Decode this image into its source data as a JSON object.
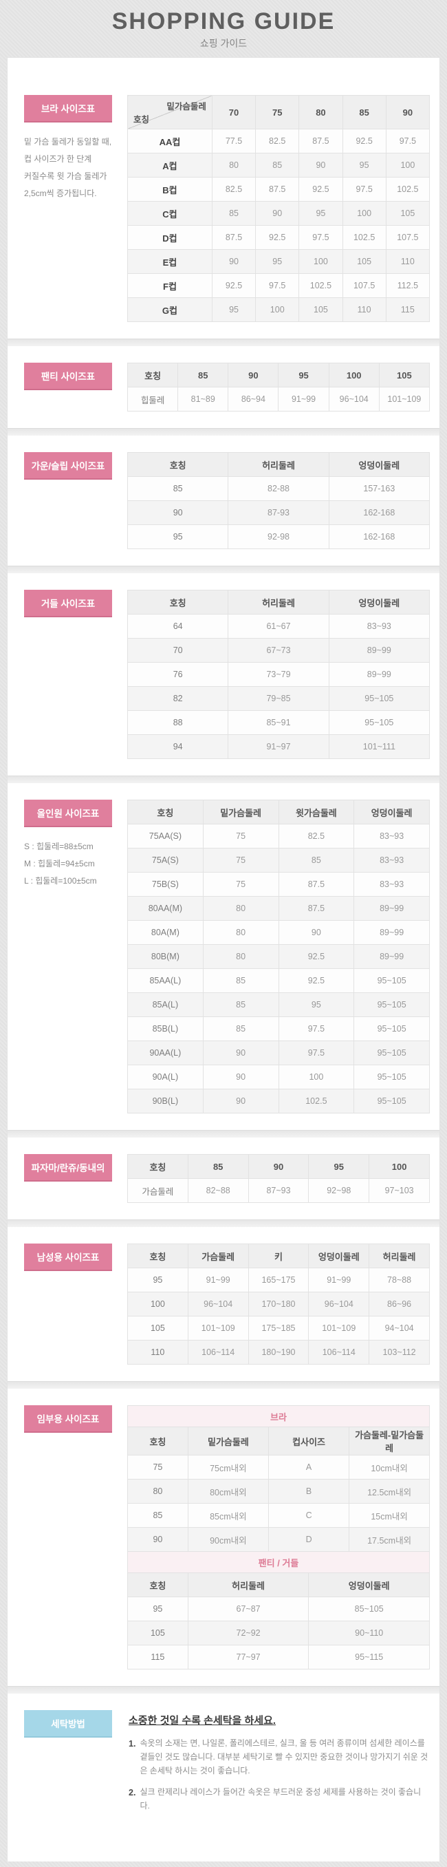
{
  "page": {
    "title": "SHOPPING GUIDE",
    "subtitle": "쇼핑 가이드"
  },
  "colors": {
    "accent_pink": "#e07f9d",
    "accent_pink_border": "#cf6d8c",
    "accent_blue": "#a5d7e8",
    "subheader_bg": "#faf0f3",
    "subheader_text": "#dd7b95",
    "table_header_bg": "#efefef",
    "page_bg": "#e5e5e5"
  },
  "sections": [
    {
      "id": "bra",
      "label": "브라 사이즈표",
      "label_style": "pink",
      "notes": [
        "밑 가슴 둘레가 동일할 때,",
        "컵 사이즈가 한 단계",
        "커질수록 윗 가슴 둘레가",
        "2,5cm씩 증가됩니다."
      ],
      "tables": [
        {
          "diagonal": {
            "top": "밑가슴둘레",
            "bottom": "호칭"
          },
          "headers": [
            "70",
            "75",
            "80",
            "85",
            "90"
          ],
          "col_widths": [
            "28%",
            "14.4%",
            "14.4%",
            "14.4%",
            "14.4%",
            "14.4%"
          ],
          "rowhead_bold": true,
          "rows": [
            [
              "AA컵",
              "77.5",
              "82.5",
              "87.5",
              "92.5",
              "97.5"
            ],
            [
              "A컵",
              "80",
              "85",
              "90",
              "95",
              "100"
            ],
            [
              "B컵",
              "82.5",
              "87.5",
              "92.5",
              "97.5",
              "102.5"
            ],
            [
              "C컵",
              "85",
              "90",
              "95",
              "100",
              "105"
            ],
            [
              "D컵",
              "87.5",
              "92.5",
              "97.5",
              "102.5",
              "107.5"
            ],
            [
              "E컵",
              "90",
              "95",
              "100",
              "105",
              "110"
            ],
            [
              "F컵",
              "92.5",
              "97.5",
              "102.5",
              "107.5",
              "112.5"
            ],
            [
              "G컵",
              "95",
              "100",
              "105",
              "110",
              "115"
            ]
          ]
        }
      ]
    },
    {
      "id": "panty",
      "label": "팬티 사이즈표",
      "label_style": "pink",
      "notes": [],
      "tables": [
        {
          "headers": [
            "호칭",
            "85",
            "90",
            "95",
            "100",
            "105"
          ],
          "rows": [
            [
              "힙둘레",
              "81~89",
              "86~94",
              "91~99",
              "96~104",
              "101~109"
            ]
          ]
        }
      ]
    },
    {
      "id": "gown-slip",
      "label": "가운/슬립 사이즈표",
      "label_style": "pink",
      "notes": [],
      "tables": [
        {
          "headers": [
            "호칭",
            "허리둘레",
            "엉덩이둘레"
          ],
          "rows": [
            [
              "85",
              "82-88",
              "157-163"
            ],
            [
              "90",
              "87-93",
              "162-168"
            ],
            [
              "95",
              "92-98",
              "162-168"
            ]
          ]
        }
      ]
    },
    {
      "id": "girdle",
      "label": "거들 사이즈표",
      "label_style": "pink",
      "notes": [],
      "tables": [
        {
          "headers": [
            "호칭",
            "허리둘레",
            "엉덩이둘레"
          ],
          "rows": [
            [
              "64",
              "61~67",
              "83~93"
            ],
            [
              "70",
              "67~73",
              "89~99"
            ],
            [
              "76",
              "73~79",
              "89~99"
            ],
            [
              "82",
              "79~85",
              "95~105"
            ],
            [
              "88",
              "85~91",
              "95~105"
            ],
            [
              "94",
              "91~97",
              "101~111"
            ]
          ]
        }
      ]
    },
    {
      "id": "all-in-one",
      "label": "올인원 사이즈표",
      "label_style": "pink",
      "notes": [
        "S : 힙둘레=88±5cm",
        "M : 힙둘레=94±5cm",
        "L : 힙둘레=100±5cm"
      ],
      "tables": [
        {
          "headers": [
            "호칭",
            "밑가슴둘레",
            "윗가슴둘레",
            "엉덩이둘레"
          ],
          "rows": [
            [
              "75AA(S)",
              "75",
              "82.5",
              "83~93"
            ],
            [
              "75A(S)",
              "75",
              "85",
              "83~93"
            ],
            [
              "75B(S)",
              "75",
              "87.5",
              "83~93"
            ],
            [
              "80AA(M)",
              "80",
              "87.5",
              "89~99"
            ],
            [
              "80A(M)",
              "80",
              "90",
              "89~99"
            ],
            [
              "80B(M)",
              "80",
              "92.5",
              "89~99"
            ],
            [
              "85AA(L)",
              "85",
              "92.5",
              "95~105"
            ],
            [
              "85A(L)",
              "85",
              "95",
              "95~105"
            ],
            [
              "85B(L)",
              "85",
              "97.5",
              "95~105"
            ],
            [
              "90AA(L)",
              "90",
              "97.5",
              "95~105"
            ],
            [
              "90A(L)",
              "90",
              "100",
              "95~105"
            ],
            [
              "90B(L)",
              "90",
              "102.5",
              "95~105"
            ]
          ]
        }
      ]
    },
    {
      "id": "pajama",
      "label": "파자마/란쥬/동내의",
      "label_style": "pink",
      "notes": [],
      "tables": [
        {
          "headers": [
            "호칭",
            "85",
            "90",
            "95",
            "100"
          ],
          "rows": [
            [
              "가슴둘레",
              "82~88",
              "87~93",
              "92~98",
              "97~103"
            ]
          ]
        }
      ]
    },
    {
      "id": "mens",
      "label": "남성용 사이즈표",
      "label_style": "pink",
      "notes": [],
      "tables": [
        {
          "headers": [
            "호칭",
            "가슴둘레",
            "키",
            "엉덩이둘레",
            "허리둘레"
          ],
          "rows": [
            [
              "95",
              "91~99",
              "165~175",
              "91~99",
              "78~88"
            ],
            [
              "100",
              "96~104",
              "170~180",
              "96~104",
              "86~96"
            ],
            [
              "105",
              "101~109",
              "175~185",
              "101~109",
              "94~104"
            ],
            [
              "110",
              "106~114",
              "180~190",
              "106~114",
              "103~112"
            ]
          ]
        }
      ]
    },
    {
      "id": "maternity",
      "label": "임부용 사이즈표",
      "label_style": "pink",
      "notes": [],
      "tables": [
        {
          "subheader": "브라",
          "headers": [
            "호칭",
            "밑가슴둘레",
            "컵사이즈",
            "가슴둘레-밑가슴둘레"
          ],
          "col_widths": [
            "20%",
            "26.7%",
            "26.7%",
            "26.6%"
          ],
          "rows": [
            [
              "75",
              "75cm내외",
              "A",
              "10cm내외"
            ],
            [
              "80",
              "80cm내외",
              "B",
              "12.5cm내외"
            ],
            [
              "85",
              "85cm내외",
              "C",
              "15cm내외"
            ],
            [
              "90",
              "90cm내외",
              "D",
              "17.5cm내외"
            ]
          ]
        },
        {
          "subheader": "팬티 / 거들",
          "headers": [
            "호칭",
            "허리둘레",
            "엉덩이둘레"
          ],
          "col_widths": [
            "20%",
            "40%",
            "40%"
          ],
          "rows": [
            [
              "95",
              "67~87",
              "85~105"
            ],
            [
              "105",
              "72~92",
              "90~110"
            ],
            [
              "115",
              "77~97",
              "95~115"
            ]
          ]
        }
      ]
    },
    {
      "id": "washing",
      "type": "washing",
      "label": "세탁방법",
      "label_style": "blue",
      "title": "소중한 것일 수록 손세탁을 하세요.",
      "items": [
        "속옷의 소재는 면, 나일론, 폴리에스테르, 실크, 울 등 여러 종류이며 섬세한 레이스를 곁들인 것도 많습니다. 대부분 세탁기로 빨 수 있지만 중요한 것이나 망가지기 쉬운 것은 손세탁 하시는 것이 좋습니다.",
        "실크 란제리나 레이스가 들어간 속옷은 부드러운 중성 세제를 사용하는 것이 좋습니다."
      ]
    }
  ]
}
